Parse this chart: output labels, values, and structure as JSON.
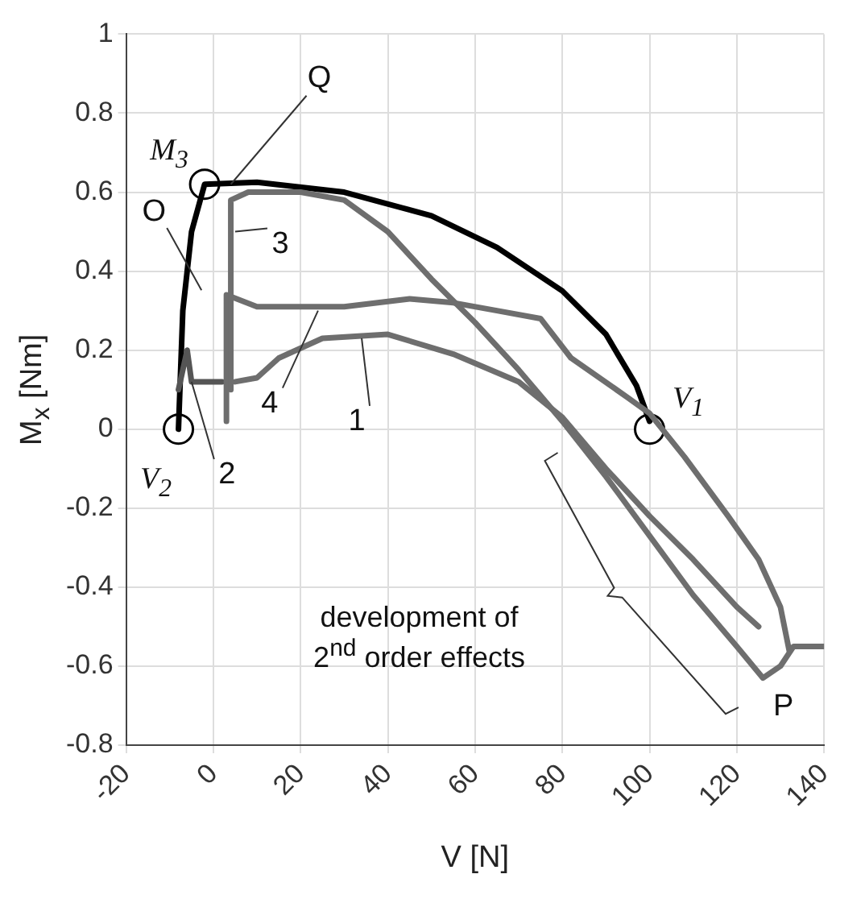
{
  "chart_data": {
    "type": "line",
    "xlabel": "V [N]",
    "ylabel": "M$_{x}$ [Nm]",
    "xlim": [
      -20,
      140
    ],
    "ylim": [
      -0.8,
      1
    ],
    "xticks": [
      -20,
      0,
      20,
      40,
      60,
      80,
      100,
      120,
      140
    ],
    "yticks": [
      -0.8,
      -0.6,
      -0.4,
      -0.2,
      0,
      0.2,
      0.4,
      0.6,
      0.8,
      1
    ],
    "grid": true,
    "legend": false,
    "line_style": "solid",
    "marker": "none",
    "series": [
      {
        "color": "#6e6e6e",
        "x": [
          4,
          4,
          8,
          20,
          30,
          40,
          50,
          60,
          70,
          80,
          90,
          100,
          110,
          120,
          126,
          130,
          133,
          140
        ],
        "values": [
          0.1,
          0.58,
          0.6,
          0.6,
          0.58,
          0.5,
          0.38,
          0.27,
          0.15,
          0.02,
          -0.12,
          -0.27,
          -0.42,
          -0.55,
          -0.63,
          -0.6,
          -0.55,
          -0.55
        ]
      },
      {
        "color": "#6e6e6e",
        "x": [
          3,
          3,
          10,
          30,
          45,
          55,
          65,
          75,
          82,
          95,
          100,
          108,
          118,
          125,
          130,
          132
        ],
        "values": [
          0.02,
          0.34,
          0.31,
          0.31,
          0.33,
          0.32,
          0.3,
          0.28,
          0.18,
          0.08,
          0.04,
          -0.07,
          -0.22,
          -0.33,
          -0.45,
          -0.56
        ]
      },
      {
        "color": "#6e6e6e",
        "x": [
          5,
          10,
          15,
          25,
          40,
          55,
          70,
          80,
          90,
          100,
          110,
          120,
          125
        ],
        "values": [
          0.12,
          0.13,
          0.18,
          0.23,
          0.24,
          0.19,
          0.12,
          0.03,
          -0.1,
          -0.22,
          -0.33,
          -0.45,
          -0.5
        ]
      },
      {
        "color": "#555555",
        "x": [
          -8,
          -6,
          -5,
          2
        ],
        "values": [
          0.1,
          0.2,
          0.12,
          0.12
        ]
      },
      {
        "color": "#000000",
        "x": [
          -8,
          -7,
          -5,
          -2,
          10,
          30,
          50,
          65,
          80,
          90,
          97,
          100
        ],
        "values": [
          0,
          0.3,
          0.5,
          0.62,
          0.625,
          0.6,
          0.54,
          0.46,
          0.35,
          0.24,
          0.11,
          0.02
        ]
      },
      {
        "type": "scatter",
        "marker": "circle",
        "color": "#ffffff",
        "x": [
          100,
          -8,
          -2
        ],
        "values": [
          0,
          0,
          0.62
        ]
      }
    ],
    "annotations": [
      {
        "text": "Q",
        "x": 4,
        "y": 0.62
      },
      {
        "text": "M$_{3}$",
        "x": -2,
        "y": 0.62
      },
      "O",
      {
        "text": "3",
        "x": 5,
        "y": 0.5
      },
      {
        "text": "4",
        "x": 24,
        "y": 0.3
      },
      {
        "text": "1",
        "x": 34,
        "y": 0.23
      },
      {
        "text": "2",
        "x": -5,
        "y": 0.12
      },
      {
        "text": "V$_{1}$",
        "x": 100,
        "y": 0
      },
      {
        "text": "V$_{2}$",
        "x": -8,
        "y": 0
      },
      {
        "text": "P",
        "x": 127,
        "y": -0.64
      },
      "development of 2$^{nd}$ order effects"
    ]
  }
}
